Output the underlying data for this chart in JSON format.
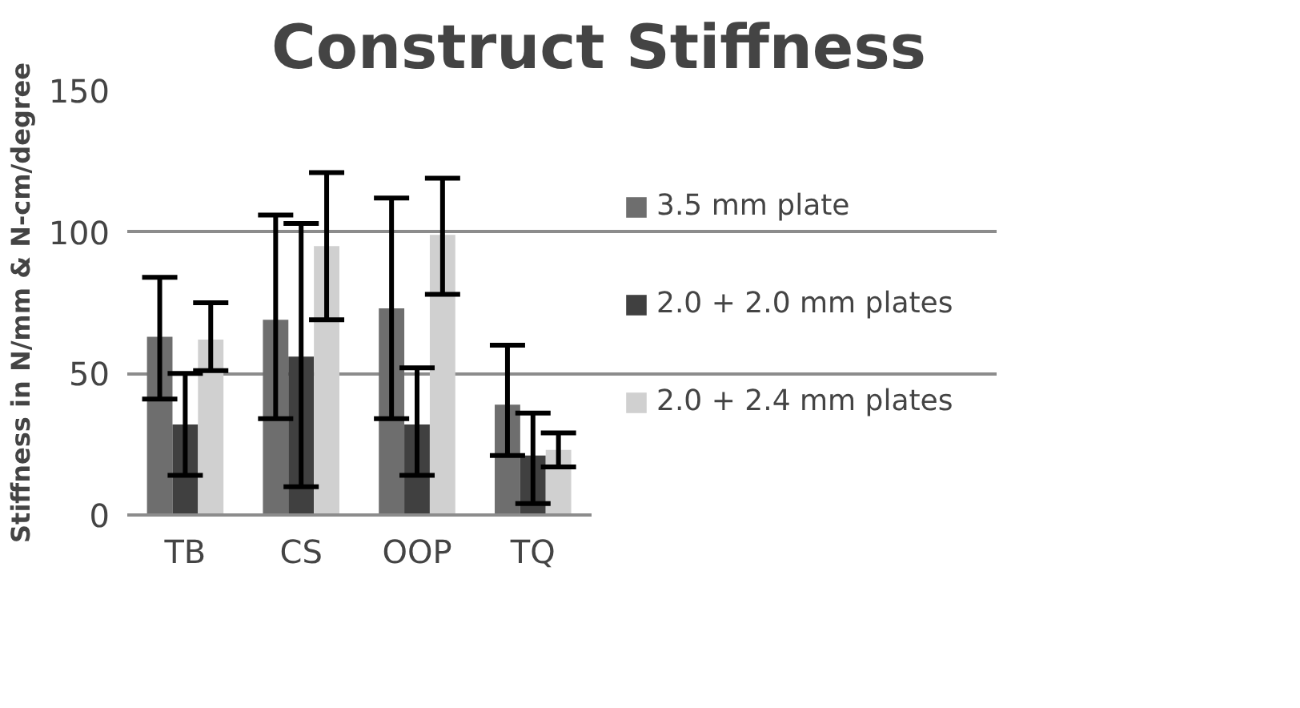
{
  "chart_data": {
    "type": "bar",
    "title": "Construct Stiffness",
    "ylabel": "Stiffness in N/mm & N-cm/degree",
    "categories": [
      "TB",
      "CS",
      "OOP",
      "TQ"
    ],
    "series": [
      {
        "name": "3.5 mm plate",
        "color": "#6e6e6e",
        "values": [
          63,
          69,
          73,
          39
        ],
        "errors": [
          [
            41,
            84
          ],
          [
            34,
            106
          ],
          [
            34,
            112
          ],
          [
            21,
            60
          ]
        ]
      },
      {
        "name": "2.0 + 2.0 mm plates",
        "color": "#404040",
        "values": [
          32,
          56,
          32,
          21
        ],
        "errors": [
          [
            14,
            50
          ],
          [
            10,
            103
          ],
          [
            14,
            52
          ],
          [
            4,
            36
          ]
        ]
      },
      {
        "name": "2.0 + 2.4 mm plates",
        "color": "#d0d0d0",
        "values": [
          62,
          95,
          99,
          23
        ],
        "errors": [
          [
            51,
            75
          ],
          [
            69,
            121
          ],
          [
            78,
            119
          ],
          [
            17,
            29
          ]
        ]
      }
    ],
    "ylim": [
      0,
      150
    ],
    "yticks": [
      0,
      50,
      100,
      150
    ],
    "grid": "y",
    "legend": "right"
  }
}
